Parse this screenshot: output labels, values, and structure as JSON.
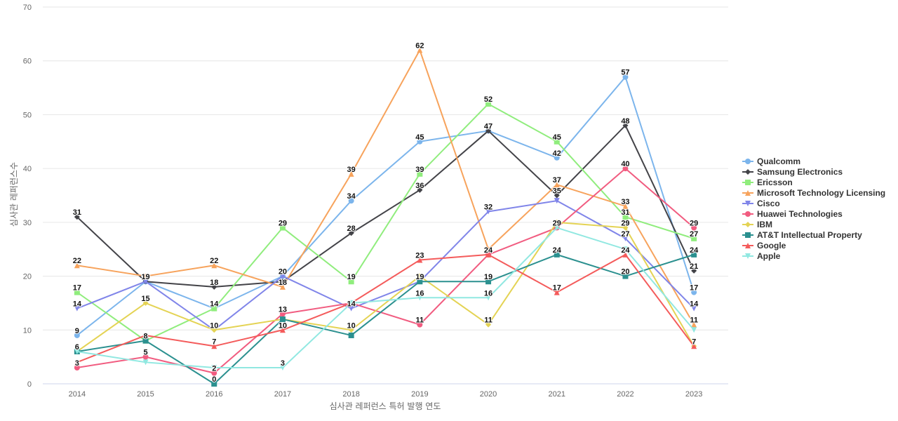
{
  "chart_data": {
    "type": "line",
    "xlabel": "심사관 레퍼런스 특허 발행 연도",
    "ylabel": "심사관 레퍼런스수",
    "ylim": [
      0,
      70
    ],
    "yticks": [
      0,
      10,
      20,
      30,
      40,
      50,
      60,
      70
    ],
    "grid": true,
    "legend_position": "right",
    "x": [
      "2014",
      "2015",
      "2016",
      "2017",
      "2018",
      "2019",
      "2020",
      "2021",
      "2022",
      "2023"
    ],
    "series": [
      {
        "name": "Qualcomm",
        "color": "#7cb5ec",
        "marker": "circle",
        "values": [
          9,
          19,
          14,
          20,
          34,
          45,
          47,
          42,
          57,
          17
        ]
      },
      {
        "name": "Samsung Electronics",
        "color": "#434348",
        "marker": "diamond",
        "values": [
          31,
          19,
          18,
          19,
          28,
          36,
          47,
          35,
          48,
          21
        ]
      },
      {
        "name": "Ericsson",
        "color": "#90ed7d",
        "marker": "square",
        "values": [
          17,
          8,
          14,
          29,
          19,
          39,
          52,
          45,
          31,
          27
        ]
      },
      {
        "name": "Microsoft Technology Licensing",
        "color": "#f7a35c",
        "marker": "triangle",
        "values": [
          22,
          20,
          22,
          18,
          39,
          62,
          25,
          37,
          33,
          11
        ]
      },
      {
        "name": "Cisco",
        "color": "#8085e9",
        "marker": "triangle-down",
        "values": [
          14,
          19,
          10,
          20,
          14,
          19,
          32,
          34,
          27,
          14
        ]
      },
      {
        "name": "Huawei Technologies",
        "color": "#f15c80",
        "marker": "circle",
        "values": [
          3,
          5,
          2,
          13,
          15,
          11,
          24,
          29,
          40,
          29
        ]
      },
      {
        "name": "IBM",
        "color": "#e4d354",
        "marker": "diamond",
        "values": [
          6,
          15,
          10,
          12,
          10,
          20,
          11,
          30,
          29,
          7
        ]
      },
      {
        "name": "AT&T Intellectual Property",
        "color": "#2b908f",
        "marker": "square",
        "values": [
          6,
          8,
          0,
          12,
          9,
          19,
          19,
          24,
          20,
          24
        ]
      },
      {
        "name": "Google",
        "color": "#f45b5b",
        "marker": "triangle",
        "values": [
          4,
          9,
          7,
          10,
          15,
          23,
          24,
          17,
          24,
          7
        ]
      },
      {
        "name": "Apple",
        "color": "#91e8e1",
        "marker": "triangle-down",
        "values": [
          6,
          4,
          3,
          3,
          15,
          16,
          16,
          29,
          25,
          10
        ]
      }
    ],
    "data_labels": [
      {
        "x": "2014",
        "labels": [
          "31",
          "22",
          "17",
          "14",
          "9",
          "6",
          "3"
        ]
      },
      {
        "x": "2015",
        "labels": [
          "19",
          "15",
          "8",
          "5"
        ]
      },
      {
        "x": "2016",
        "labels": [
          "22",
          "18",
          "14",
          "10",
          "7",
          "2",
          "0"
        ]
      },
      {
        "x": "2017",
        "labels": [
          "29",
          "20",
          "18",
          "13",
          "10",
          "3"
        ]
      },
      {
        "x": "2018",
        "labels": [
          "39",
          "34",
          "28",
          "19",
          "14",
          "10"
        ]
      },
      {
        "x": "2019",
        "labels": [
          "62",
          "45",
          "39",
          "36",
          "23",
          "19",
          "16",
          "11"
        ]
      },
      {
        "x": "2020",
        "labels": [
          "52",
          "47",
          "32",
          "24",
          "19",
          "16",
          "11"
        ]
      },
      {
        "x": "2021",
        "labels": [
          "45",
          "42",
          "37",
          "35",
          "29",
          "24",
          "17"
        ]
      },
      {
        "x": "2022",
        "labels": [
          "57",
          "48",
          "40",
          "33",
          "31",
          "29",
          "27",
          "24",
          "20"
        ]
      },
      {
        "x": "2023",
        "labels": [
          "29",
          "27",
          "24",
          "21",
          "17",
          "14",
          "11",
          "7"
        ]
      }
    ]
  }
}
